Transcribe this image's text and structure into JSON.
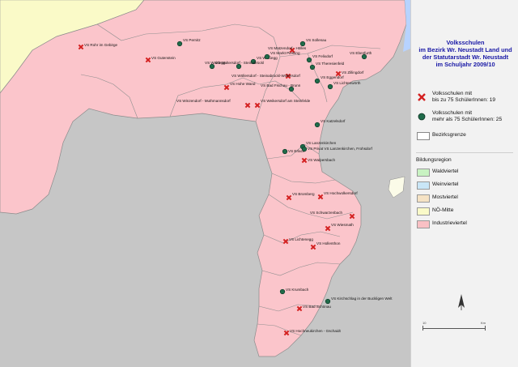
{
  "title_lines": [
    "Volksschulen",
    "im Bezirk Wr. Neustadt Land und",
    "der Statutarstadt Wr. Neustadt",
    "im Schuljahr 2009/10"
  ],
  "legend": {
    "small_line1": "Volksschulen mit",
    "small_line2": "bis zu 75 SchülerInnen: 19",
    "large_line1": "Volksschulen mit",
    "large_line2": "mehr als 75 SchülerInnen: 25",
    "border": "Bezirksgrenze",
    "region_header": "Bildungsregion",
    "regions": [
      {
        "label": "Waldviertel",
        "color": "#c8f2c2"
      },
      {
        "label": "Weinviertel",
        "color": "#c9e6f7"
      },
      {
        "label": "Mostviertel",
        "color": "#f5e2c4"
      },
      {
        "label": "NÖ-Mitte",
        "color": "#fafac8"
      },
      {
        "label": "Industrieviertel",
        "color": "#f9c0c4"
      }
    ]
  },
  "scale": {
    "start": "10",
    "end": "Km"
  },
  "colors": {
    "industrieviertel": "#fbc5cb",
    "noe_mitte": "#fafac8",
    "outside": "#c6c6c6",
    "water": "#b7d3ff",
    "small_marker": "#d42020",
    "large_marker": "#1f6b4a"
  },
  "icons": {
    "small": "x-cross-icon",
    "large": "green-dot-icon",
    "north": "north-arrow-icon"
  },
  "schools": [
    {
      "name": "VS Rohr im Gebirge",
      "type": "small"
    },
    {
      "name": "VS Pernitz",
      "type": "large"
    },
    {
      "name": "VS Gutenstein",
      "type": "small"
    },
    {
      "name": "VS Matzendorf - Hölles",
      "type": "small"
    },
    {
      "name": "VS Sollenau",
      "type": "large"
    },
    {
      "name": "VS Ebenfurth",
      "type": "large"
    },
    {
      "name": "VS Weißegg",
      "type": "large"
    },
    {
      "name": "VS Markt Piesting",
      "type": "large"
    },
    {
      "name": "VS Felixdorf",
      "type": "large"
    },
    {
      "name": "VS Waldegg",
      "type": "large"
    },
    {
      "name": "VS Waltersdorf - Steinabrückl",
      "type": "large"
    },
    {
      "name": "VS Theresienfeld",
      "type": "large"
    },
    {
      "name": "VS Zillingdorf",
      "type": "small"
    },
    {
      "name": "VS Wöllersdorf - Steinabrückl-Wöllersdorf",
      "type": "small"
    },
    {
      "name": "VS Eggendorf",
      "type": "large"
    },
    {
      "name": "VS Hohe Wand",
      "type": "small"
    },
    {
      "name": "VS Bad Fischau - Brunn",
      "type": "large"
    },
    {
      "name": "VS Lichtenwörth",
      "type": "large"
    },
    {
      "name": "VS Winzendorf - Muthmannsdorf",
      "type": "small"
    },
    {
      "name": "VS Weikersdorf am Steinfelde",
      "type": "small"
    },
    {
      "name": "VS Katzelsdorf",
      "type": "large"
    },
    {
      "name": "VS Lanzenkirchen",
      "type": "large"
    },
    {
      "name": "VS Erlach",
      "type": "large"
    },
    {
      "name": "VS Privat VS Lanzenkirchen, Frohsdorf",
      "type": "large"
    },
    {
      "name": "VS Walpersbach",
      "type": "small"
    },
    {
      "name": "VS Bromberg",
      "type": "small"
    },
    {
      "name": "VS Hochwolkersdorf",
      "type": "small"
    },
    {
      "name": "VS Schwarzenbach",
      "type": "small"
    },
    {
      "name": "VS Wiesmath",
      "type": "small"
    },
    {
      "name": "VS Lichtenegg",
      "type": "small"
    },
    {
      "name": "VS Hollenthon",
      "type": "small"
    },
    {
      "name": "VS Krumbach",
      "type": "large"
    },
    {
      "name": "VS Kirchschlag in der Buckligen Welt",
      "type": "large"
    },
    {
      "name": "VS Bad Schönau",
      "type": "small"
    },
    {
      "name": "VS Hochneukirchen - Gschaidt",
      "type": "small"
    }
  ]
}
